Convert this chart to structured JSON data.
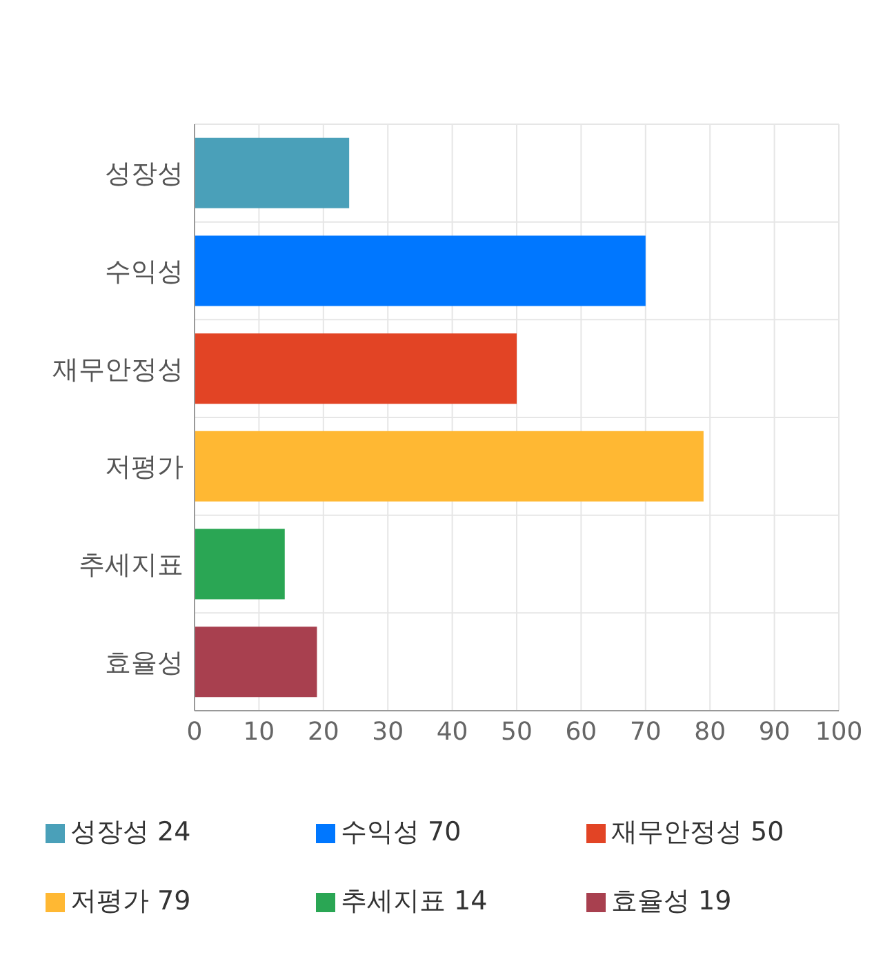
{
  "chart_data": {
    "type": "bar",
    "orientation": "horizontal",
    "stacked": true,
    "categories": [
      "성장성",
      "수익성",
      "재무안정성",
      "저평가",
      "추세지표",
      "효율성"
    ],
    "series": [
      {
        "name": "성장성 24",
        "color": "#4aa0b9",
        "values": [
          24,
          null,
          null,
          null,
          null,
          null
        ]
      },
      {
        "name": "수익성 70",
        "color": "#0077ff",
        "values": [
          null,
          70,
          null,
          null,
          null,
          null
        ]
      },
      {
        "name": "재무안정성 50",
        "color": "#e24425",
        "values": [
          null,
          null,
          50,
          null,
          null,
          null
        ]
      },
      {
        "name": "저평가 79",
        "color": "#ffb833",
        "values": [
          null,
          null,
          null,
          79,
          null,
          null
        ]
      },
      {
        "name": "추세지표 14",
        "color": "#2aa654",
        "values": [
          null,
          null,
          null,
          null,
          14,
          null
        ]
      },
      {
        "name": "효율성 19",
        "color": "#a8404f",
        "values": [
          null,
          null,
          null,
          null,
          null,
          19
        ]
      }
    ],
    "xlim": [
      0,
      100
    ],
    "xticks": [
      0,
      10,
      20,
      30,
      40,
      50,
      60,
      70,
      80,
      90,
      100
    ],
    "grid": true,
    "legend": "bottom"
  }
}
